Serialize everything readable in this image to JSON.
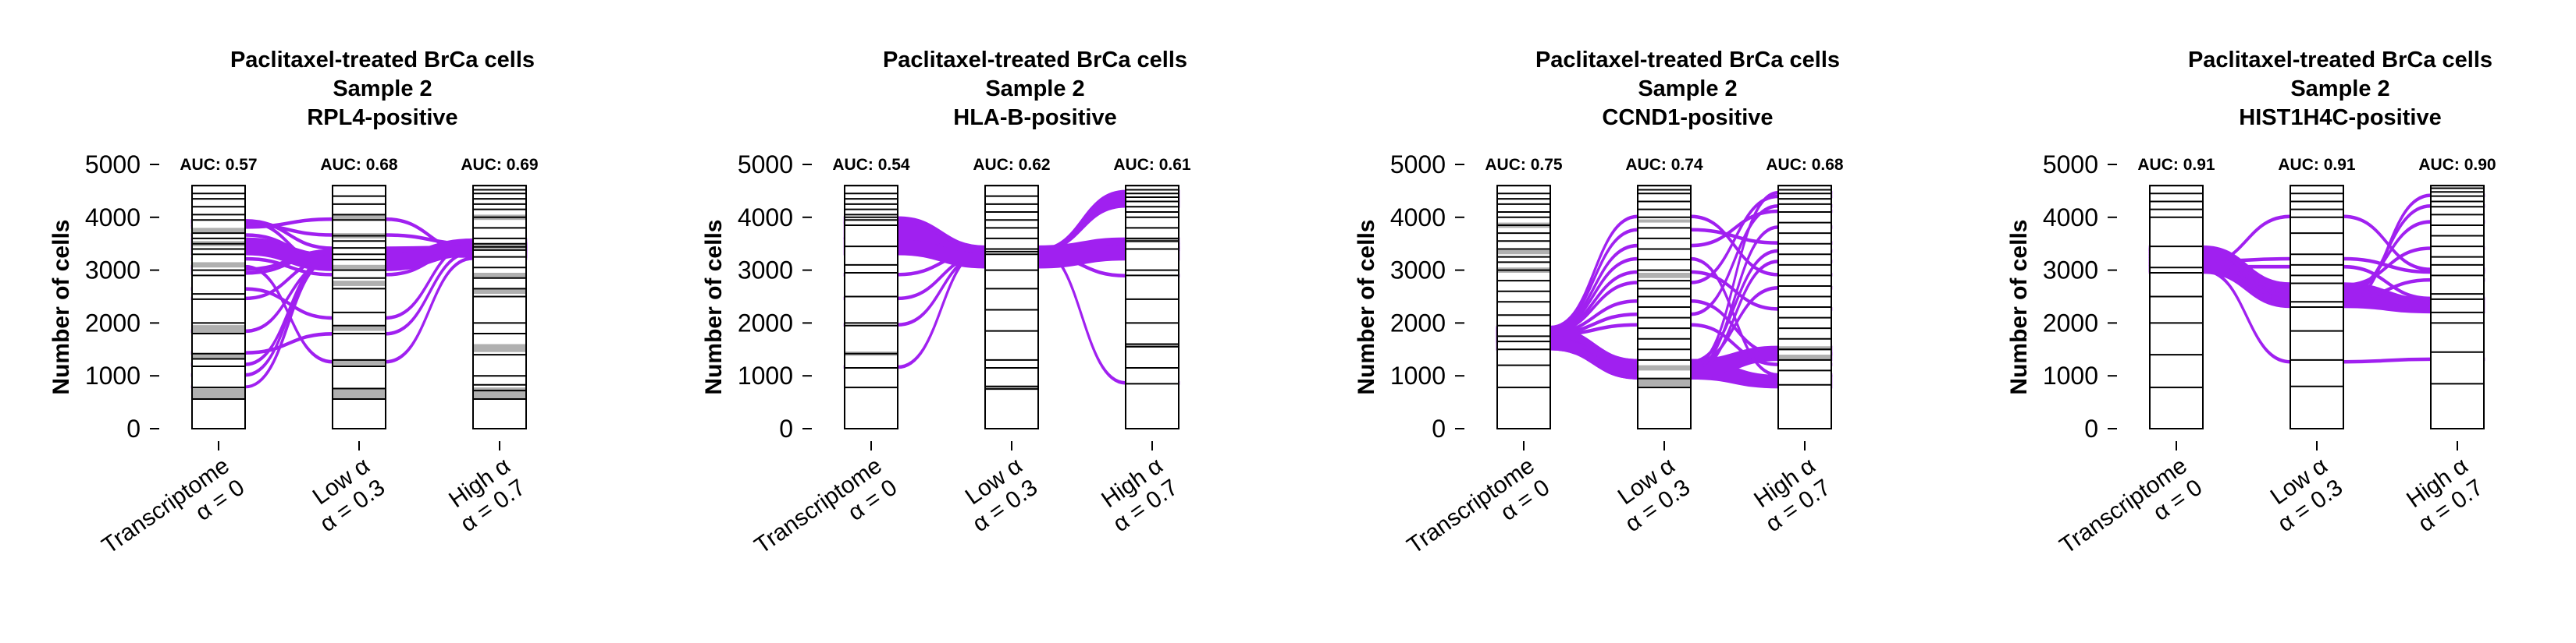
{
  "panels": [
    {
      "title": [
        "Paclitaxel-treated BrCa cells",
        "Sample 2",
        "RPL4-positive"
      ],
      "auc": [
        "AUC: 0.57",
        "AUC: 0.68",
        "AUC: 0.69"
      ]
    },
    {
      "title": [
        "Paclitaxel-treated BrCa cells",
        "Sample 2",
        "HLA-B-positive"
      ],
      "auc": [
        "AUC: 0.54",
        "AUC: 0.62",
        "AUC: 0.61"
      ]
    },
    {
      "title": [
        "Paclitaxel-treated BrCa cells",
        "Sample 2",
        "CCND1-positive"
      ],
      "auc": [
        "AUC: 0.75",
        "AUC: 0.74",
        "AUC: 0.68"
      ]
    },
    {
      "title": [
        "Paclitaxel-treated BrCa cells",
        "Sample 2",
        "HIST1H4C-positive"
      ],
      "auc": [
        "AUC: 0.91",
        "AUC: 0.91",
        "AUC: 0.90"
      ]
    }
  ],
  "chart_data": [
    {
      "type": "alluvial",
      "title": "Paclitaxel-treated BrCa cells\nSample 2\nRPL4-positive",
      "ylabel": "Number of cells",
      "ylim": [
        0,
        4600
      ],
      "yticks": [
        0,
        1000,
        2000,
        3000,
        4000,
        5000
      ],
      "categories": [
        [
          "Transcriptome",
          "α = 0"
        ],
        [
          "Low α",
          "α = 0.3"
        ],
        [
          "High α",
          "α = 0.7"
        ]
      ],
      "auc": [
        0.57,
        0.68,
        0.69
      ],
      "flow_color": "#a020f0",
      "boundaries": [
        [
          0,
          560,
          780,
          1180,
          1320,
          1420,
          1800,
          2000,
          2450,
          2550,
          2900,
          3000,
          3300,
          3400,
          3500,
          3600,
          3700,
          3950,
          4050,
          4200,
          4350,
          4450,
          4600
        ],
        [
          0,
          560,
          760,
          1180,
          1300,
          1800,
          1950,
          2200,
          2650,
          2850,
          3000,
          3200,
          3300,
          3420,
          3550,
          3650,
          3950,
          4050,
          4250,
          4400,
          4600
        ],
        [
          0,
          560,
          720,
          830,
          1000,
          1400,
          1800,
          2000,
          2500,
          2650,
          2850,
          3050,
          3250,
          3380,
          3440,
          3500,
          3600,
          3800,
          4000,
          4150,
          4250,
          4350,
          4450,
          4520,
          4600
        ]
      ],
      "gray_bands": [
        [
          [
            560,
            760
          ],
          [
            1320,
            1420
          ],
          [
            1800,
            1960
          ],
          [
            3050,
            3150
          ],
          [
            3450,
            3550
          ],
          [
            3700,
            3800
          ]
        ],
        [
          [
            560,
            760
          ],
          [
            1200,
            1300
          ],
          [
            1850,
            1950
          ],
          [
            2700,
            2800
          ],
          [
            3000,
            3100
          ],
          [
            3600,
            3700
          ],
          [
            3960,
            4050
          ]
        ],
        [
          [
            560,
            780
          ],
          [
            1450,
            1600
          ],
          [
            2550,
            2650
          ],
          [
            2850,
            2950
          ],
          [
            3400,
            3500
          ],
          [
            3950,
            4050
          ]
        ]
      ],
      "flows": [
        [
          [
            780,
            800
          ],
          [
            3200,
            3300
          ],
          [
            3440,
            3480
          ]
        ],
        [
          [
            1000,
            1030
          ],
          [
            3300,
            3330
          ],
          [
            3400,
            3440
          ]
        ],
        [
          [
            1200,
            1230
          ],
          [
            3240,
            3270
          ],
          [
            3380,
            3420
          ]
        ],
        [
          [
            1420,
            1450
          ],
          [
            1780,
            1810
          ],
          [
            3330,
            3360
          ]
        ],
        [
          [
            1830,
            1860
          ],
          [
            3150,
            3180
          ],
          [
            3350,
            3380
          ]
        ],
        [
          [
            2450,
            2480
          ],
          [
            3200,
            3230
          ],
          [
            3280,
            3310
          ]
        ],
        [
          [
            2630,
            2660
          ],
          [
            2080,
            2110
          ],
          [
            3480,
            3510
          ]
        ],
        [
          [
            2930,
            2960
          ],
          [
            3300,
            3330
          ],
          [
            3250,
            3280
          ]
        ],
        [
          [
            3000,
            3030
          ],
          [
            3350,
            3380
          ],
          [
            3440,
            3470
          ]
        ],
        [
          [
            3050,
            3080
          ],
          [
            1250,
            1280
          ],
          [
            3210,
            3240
          ]
        ],
        [
          [
            3200,
            3230
          ],
          [
            2900,
            2930
          ],
          [
            3400,
            3430
          ]
        ],
        [
          [
            3300,
            3600
          ],
          [
            3000,
            3300
          ],
          [
            3280,
            3580
          ]
        ],
        [
          [
            3650,
            3680
          ],
          [
            3220,
            3250
          ],
          [
            3450,
            3480
          ]
        ],
        [
          [
            3800,
            3830
          ],
          [
            3950,
            3980
          ],
          [
            3330,
            3360
          ]
        ],
        [
          [
            3850,
            3880
          ],
          [
            3650,
            3680
          ],
          [
            3480,
            3510
          ]
        ],
        [
          [
            3900,
            3930
          ],
          [
            3080,
            3110
          ],
          [
            3360,
            3390
          ]
        ],
        [
          [
            3920,
            3950
          ],
          [
            3400,
            3430
          ],
          [
            3420,
            3450
          ]
        ]
      ]
    },
    {
      "type": "alluvial",
      "title": "Paclitaxel-treated BrCa cells\nSample 2\nHLA-B-positive",
      "ylabel": "Number of cells",
      "ylim": [
        0,
        4600
      ],
      "yticks": [
        0,
        1000,
        2000,
        3000,
        4000,
        5000
      ],
      "categories": [
        [
          "Transcriptome",
          "α = 0"
        ],
        [
          "Low α",
          "α = 0.3"
        ],
        [
          "High α",
          "α = 0.7"
        ]
      ],
      "auc": [
        0.54,
        0.62,
        0.61
      ],
      "flow_color": "#a020f0",
      "boundaries": [
        [
          0,
          780,
          1150,
          1420,
          1950,
          2000,
          2500,
          2950,
          3100,
          3450,
          3850,
          3950,
          4000,
          4050,
          4150,
          4250,
          4350,
          4450,
          4600
        ],
        [
          0,
          750,
          800,
          1150,
          1300,
          1850,
          2250,
          2650,
          3000,
          3300,
          3350,
          3400,
          3600,
          3800,
          3950,
          4100,
          4250,
          4400,
          4600
        ],
        [
          0,
          850,
          1150,
          1550,
          1600,
          2000,
          2450,
          2900,
          3000,
          3400,
          3550,
          3600,
          3800,
          4000,
          4100,
          4200,
          4300,
          4380,
          4450,
          4520,
          4600
        ]
      ],
      "gray_bands": [
        [
          [
            1380,
            1460
          ]
        ],
        [
          [
            750,
            800
          ]
        ],
        [
          [
            1550,
            1600
          ],
          [
            3520,
            3600
          ]
        ]
      ],
      "flows": [
        [
          [
            1150,
            1180
          ],
          [
            3380,
            3410
          ],
          [
            850,
            880
          ]
        ],
        [
          [
            1950,
            1980
          ],
          [
            3300,
            3330
          ],
          [
            3380,
            3410
          ]
        ],
        [
          [
            2450,
            2480
          ],
          [
            3280,
            3310
          ],
          [
            2880,
            2910
          ]
        ],
        [
          [
            2900,
            2930
          ],
          [
            3350,
            3380
          ],
          [
            3420,
            3450
          ]
        ],
        [
          [
            3300,
            3600
          ],
          [
            3050,
            3350
          ],
          [
            3200,
            3500
          ]
        ],
        [
          [
            3600,
            3900
          ],
          [
            3350,
            3400
          ],
          [
            4200,
            4500
          ]
        ],
        [
          [
            3900,
            4000
          ],
          [
            3400,
            3450
          ],
          [
            3500,
            3600
          ]
        ]
      ]
    },
    {
      "type": "alluvial",
      "title": "Paclitaxel-treated BrCa cells\nSample 2\nCCND1-positive",
      "ylabel": "Number of cells",
      "ylim": [
        0,
        4600
      ],
      "yticks": [
        0,
        1000,
        2000,
        3000,
        4000,
        5000
      ],
      "categories": [
        [
          "Transcriptome",
          "α = 0"
        ],
        [
          "Low α",
          "α = 0.3"
        ],
        [
          "High α",
          "α = 0.7"
        ]
      ],
      "auc": [
        0.75,
        0.74,
        0.68
      ],
      "flow_color": "#a020f0",
      "boundaries": [
        [
          0,
          780,
          1200,
          1500,
          1650,
          1750,
          1950,
          2150,
          2400,
          2600,
          2800,
          3000,
          3150,
          3250,
          3400,
          3550,
          3700,
          3850,
          4000,
          4100,
          4250,
          4350,
          4450,
          4600
        ],
        [
          0,
          780,
          950,
          1300,
          1500,
          1700,
          1900,
          2100,
          2300,
          2500,
          2650,
          2800,
          3000,
          3200,
          3400,
          3600,
          3800,
          4000,
          4150,
          4300,
          4450,
          4520,
          4600
        ],
        [
          0,
          830,
          1100,
          1300,
          1500,
          1700,
          1900,
          2100,
          2300,
          2500,
          2700,
          2900,
          3100,
          3300,
          3500,
          3700,
          3900,
          4100,
          4250,
          4350,
          4450,
          4520,
          4600
        ]
      ],
      "gray_bands": [
        [
          [
            2950,
            3050
          ],
          [
            3300,
            3380
          ],
          [
            3800,
            3900
          ]
        ],
        [
          [
            800,
            950
          ],
          [
            1100,
            1200
          ],
          [
            2850,
            2950
          ],
          [
            3900,
            3960
          ]
        ],
        [
          [
            1300,
            1400
          ],
          [
            1480,
            1560
          ]
        ]
      ],
      "flows": [
        [
          [
            1500,
            1900
          ],
          [
            950,
            1300
          ],
          [
            780,
            1000
          ]
        ],
        [
          [
            1500,
            1900
          ],
          [
            950,
            1300
          ],
          [
            1300,
            1550
          ]
        ],
        [
          [
            1760,
            1790
          ],
          [
            1950,
            1980
          ],
          [
            1200,
            1230
          ]
        ],
        [
          [
            1780,
            1810
          ],
          [
            2150,
            2180
          ],
          [
            4200,
            4230
          ]
        ],
        [
          [
            1800,
            1830
          ],
          [
            2400,
            2430
          ],
          [
            1400,
            1430
          ]
        ],
        [
          [
            1820,
            1850
          ],
          [
            2750,
            2780
          ],
          [
            4380,
            4410
          ]
        ],
        [
          [
            1830,
            1860
          ],
          [
            2950,
            2980
          ],
          [
            2250,
            2280
          ]
        ],
        [
          [
            1850,
            1880
          ],
          [
            3200,
            3230
          ],
          [
            1000,
            1030
          ]
        ],
        [
          [
            1860,
            1890
          ],
          [
            3450,
            3480
          ],
          [
            4100,
            4130
          ]
        ],
        [
          [
            1880,
            1910
          ],
          [
            3750,
            3780
          ],
          [
            3500,
            3530
          ]
        ],
        [
          [
            1900,
            1930
          ],
          [
            4000,
            4030
          ],
          [
            2900,
            2930
          ]
        ],
        [
          [
            1720,
            1750
          ],
          [
            1050,
            1080
          ],
          [
            3150,
            3180
          ]
        ],
        [
          [
            1700,
            1730
          ],
          [
            1100,
            1130
          ],
          [
            3800,
            3830
          ]
        ],
        [
          [
            1680,
            1710
          ],
          [
            1150,
            1180
          ],
          [
            4450,
            4480
          ]
        ],
        [
          [
            1660,
            1690
          ],
          [
            1200,
            1230
          ],
          [
            2650,
            2680
          ]
        ],
        [
          [
            1640,
            1670
          ],
          [
            1250,
            1280
          ],
          [
            3350,
            3380
          ]
        ]
      ]
    },
    {
      "type": "alluvial",
      "title": "Paclitaxel-treated BrCa cells\nSample 2\nHIST1H4C-positive",
      "ylabel": "Number of cells",
      "ylim": [
        0,
        4600
      ],
      "yticks": [
        0,
        1000,
        2000,
        3000,
        4000,
        5000
      ],
      "categories": [
        [
          "Transcriptome",
          "α = 0"
        ],
        [
          "Low α",
          "α = 0.3"
        ],
        [
          "High α",
          "α = 0.7"
        ]
      ],
      "auc": [
        0.91,
        0.91,
        0.9
      ],
      "flow_color": "#a020f0",
      "boundaries": [
        [
          0,
          780,
          1400,
          2000,
          2500,
          2950,
          3050,
          3450,
          4000,
          4150,
          4300,
          4450,
          4600
        ],
        [
          0,
          800,
          1300,
          1850,
          2300,
          2400,
          2750,
          2900,
          3100,
          3300,
          3700,
          4000,
          4150,
          4300,
          4450,
          4600
        ],
        [
          0,
          850,
          1450,
          2000,
          2200,
          2450,
          2550,
          2900,
          3100,
          3250,
          3450,
          3650,
          3850,
          4050,
          4200,
          4300,
          4400,
          4480,
          4550,
          4600
        ]
      ],
      "gray_bands": [
        [],
        [],
        []
      ],
      "flows": [
        [
          [
            2950,
            3450
          ],
          [
            2300,
            2750
          ],
          [
            2200,
            2450
          ]
        ],
        [
          [
            2980,
            3010
          ],
          [
            1250,
            1280
          ],
          [
            1300,
            1330
          ]
        ],
        [
          [
            3050,
            3080
          ],
          [
            3050,
            3080
          ],
          [
            2450,
            2480
          ]
        ],
        [
          [
            3100,
            3130
          ],
          [
            4000,
            4030
          ],
          [
            3000,
            3030
          ]
        ],
        [
          [
            3150,
            3180
          ],
          [
            3200,
            3230
          ],
          [
            2950,
            2980
          ]
        ],
        [
          [
            3200,
            3230
          ],
          [
            2350,
            2380
          ],
          [
            4400,
            4430
          ]
        ],
        [
          [
            3250,
            3280
          ],
          [
            2700,
            2730
          ],
          [
            3400,
            3430
          ]
        ],
        [
          [
            3300,
            3330
          ],
          [
            2600,
            2630
          ],
          [
            3900,
            3930
          ]
        ],
        [
          [
            3350,
            3380
          ],
          [
            2500,
            2530
          ],
          [
            4200,
            4230
          ]
        ],
        [
          [
            3380,
            3410
          ],
          [
            2420,
            2450
          ],
          [
            2800,
            2830
          ]
        ]
      ]
    }
  ]
}
